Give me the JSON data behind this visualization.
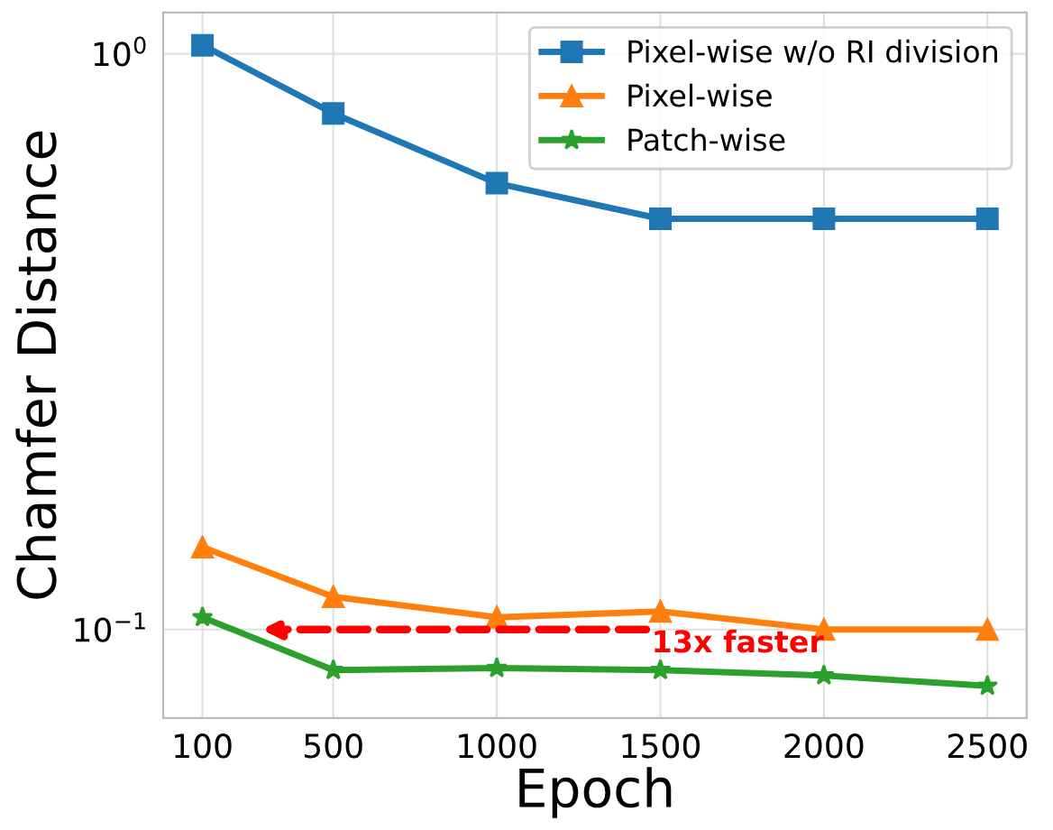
{
  "chart_data": {
    "type": "line",
    "xlabel": "Epoch",
    "ylabel": "Chamfer Distance",
    "x": [
      100,
      500,
      1000,
      1500,
      2000,
      2500
    ],
    "series": [
      {
        "name": "Pixel-wise w/o RI division",
        "color": "#1f77b4",
        "marker": "square",
        "values": [
          1.035,
          0.788,
          0.596,
          0.517,
          0.517,
          0.517
        ]
      },
      {
        "name": "Pixel-wise",
        "color": "#ff7f0e",
        "marker": "triangle",
        "values": [
          0.139,
          0.114,
          0.105,
          0.1075,
          0.1,
          0.1
        ]
      },
      {
        "name": "Patch-wise",
        "color": "#2ca02c",
        "marker": "star",
        "values": [
          0.105,
          0.085,
          0.0857,
          0.085,
          0.0832,
          0.0798
        ]
      }
    ],
    "log": "y",
    "xlim": [
      -20,
      2620
    ],
    "ylim": [
      0.0702,
      1.18
    ],
    "xticks": [
      100,
      500,
      1000,
      1500,
      2000,
      2500
    ],
    "yticks": [
      {
        "value": 1,
        "label": "10$^{0}$"
      },
      {
        "value": 0.1,
        "label": "10$^{−1}$"
      }
    ],
    "grid": true,
    "legend": "top right",
    "line_style": "solid",
    "annotations": [
      {
        "text": "13x faster",
        "x": 281,
        "y": 0.1
      }
    ]
  }
}
